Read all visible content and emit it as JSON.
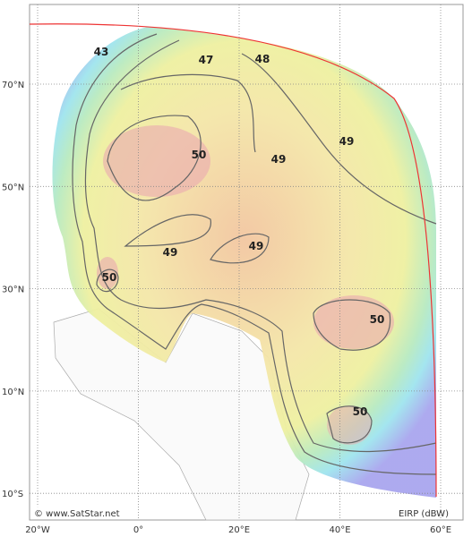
{
  "map": {
    "lat_labels": [
      "70°N",
      "50°N",
      "30°N",
      "10°N",
      "10°S"
    ],
    "lon_labels": [
      "20°W",
      "0°",
      "20°E",
      "40°E",
      "60°E"
    ],
    "contours": [
      43,
      47,
      48,
      49,
      49,
      50,
      49,
      49,
      50,
      50,
      50
    ],
    "credit": "© www.SatStar.net",
    "legend": "EIRP (dBW)"
  }
}
